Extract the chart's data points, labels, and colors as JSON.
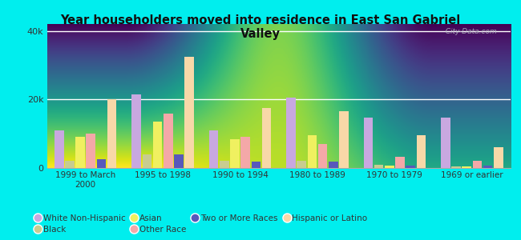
{
  "title": "Year householders moved into residence in East San Gabriel\nValley",
  "categories": [
    "1999 to March\n2000",
    "1995 to 1998",
    "1990 to 1994",
    "1980 to 1989",
    "1970 to 1979",
    "1969 or earlier"
  ],
  "series_order": [
    "White Non-Hispanic",
    "Black",
    "Asian",
    "Other Race",
    "Two or More Races",
    "Hispanic or Latino"
  ],
  "series": {
    "White Non-Hispanic": [
      11000,
      21500,
      11000,
      20500,
      14800,
      14800
    ],
    "Black": [
      2000,
      4000,
      2200,
      2200,
      1000,
      500
    ],
    "Asian": [
      9000,
      13500,
      8500,
      9500,
      700,
      500
    ],
    "Other Race": [
      10000,
      15800,
      9000,
      7000,
      3200,
      2200
    ],
    "Two or More Races": [
      2500,
      4000,
      1800,
      1800,
      800,
      800
    ],
    "Hispanic or Latino": [
      20000,
      32500,
      17500,
      16500,
      9500,
      6000
    ]
  },
  "colors": {
    "White Non-Hispanic": "#c8a8e0",
    "Black": "#c8cc90",
    "Asian": "#f0f060",
    "Other Race": "#f4a8a8",
    "Two or More Races": "#5858bb",
    "Hispanic or Latino": "#f8d8a8"
  },
  "ylim": [
    0,
    42000
  ],
  "yticks": [
    0,
    20000,
    40000
  ],
  "ytick_labels": [
    "0",
    "20k",
    "40k"
  ],
  "outer_background": "#00eeee",
  "watermark": "  City-Data.com"
}
